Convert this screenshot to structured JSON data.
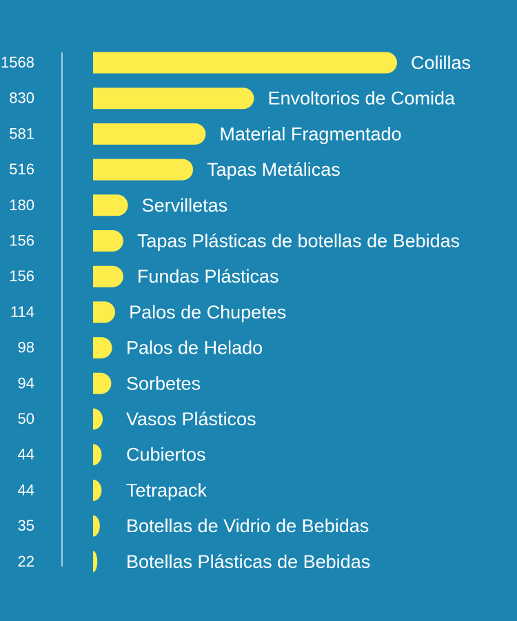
{
  "colors": {
    "background": "#1b84b0",
    "bar": "#fdec4a",
    "text": "#ffffff",
    "axis": "#a9cfe2"
  },
  "chart_data": {
    "type": "bar",
    "orientation": "horizontal",
    "title": "",
    "xlabel": "",
    "ylabel": "",
    "grid": false,
    "legend": "none",
    "xlim": [
      0,
      1568
    ],
    "categories": [
      "Colillas",
      "Envoltorios de Comida",
      "Material Fragmentado",
      "Tapas Metálicas",
      "Servilletas",
      "Tapas Plásticas de botellas de Bebidas",
      "Fundas Plásticas",
      "Palos de Chupetes",
      "Palos de Helado",
      "Sorbetes",
      "Vasos Plásticos",
      "Cubiertos",
      "Tetrapack",
      "Botellas de Vidrio de Bebidas",
      "Botellas Plásticas de Bebidas"
    ],
    "values": [
      1568,
      830,
      581,
      516,
      180,
      156,
      156,
      114,
      98,
      94,
      50,
      44,
      44,
      35,
      22
    ],
    "value_labels": [
      "1568",
      "830",
      "581",
      "516",
      "180",
      "156",
      "156",
      "114",
      "98",
      "94",
      "50",
      "44",
      "44",
      "35",
      "22"
    ]
  }
}
